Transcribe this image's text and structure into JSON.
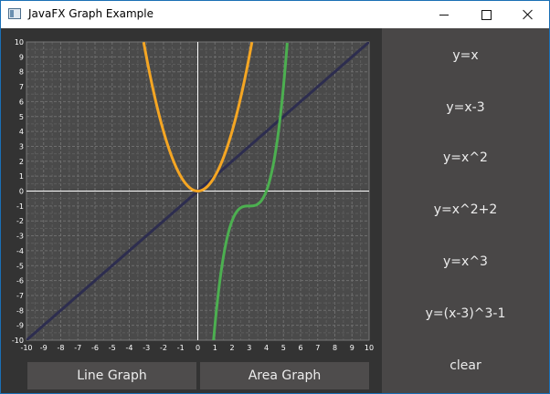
{
  "window": {
    "title": "JavaFX Graph Example"
  },
  "icons": {
    "app": "app-window-icon",
    "minimize": "minimize-icon",
    "maximize": "maximize-icon",
    "close": "close-icon"
  },
  "buttons": {
    "line_graph": "Line Graph",
    "area_graph": "Area Graph"
  },
  "functions": [
    "y=x",
    "y=x-3",
    "y=x^2",
    "y=x^2+2",
    "y=x^3",
    "y=(x-3)^3-1",
    "clear"
  ],
  "colors": {
    "line_yx": "#2d2d4f",
    "parabola": "#f5a623",
    "cubic": "#4caf50",
    "plot_bg": "#4a4a4a",
    "axis": "#ffffff"
  },
  "chart_data": {
    "type": "line",
    "xlim": [
      -10,
      10
    ],
    "ylim": [
      -10,
      10
    ],
    "grid": true,
    "x_ticks": [
      "-10",
      "-9",
      "-8",
      "-7",
      "-6",
      "-5",
      "-4",
      "-3",
      "-2",
      "-1",
      "0",
      "1",
      "2",
      "3",
      "4",
      "5",
      "6",
      "7",
      "8",
      "9",
      "10"
    ],
    "y_ticks": [
      "10",
      "9",
      "8",
      "7",
      "6",
      "5",
      "4",
      "3",
      "2",
      "1",
      "0",
      "-1",
      "-2",
      "-3",
      "-4",
      "-5",
      "-6",
      "-7",
      "-8",
      "-9",
      "-10"
    ],
    "series": [
      {
        "expr": "x",
        "color": "#2d2d4f",
        "x": [
          -10,
          10
        ],
        "y": [
          -10,
          10
        ]
      },
      {
        "expr": "x^2",
        "color": "#f5a623",
        "x": [
          -3.16,
          -2,
          -1,
          0,
          1,
          2,
          3.16
        ],
        "y": [
          10,
          4,
          1,
          0,
          1,
          4,
          10
        ]
      },
      {
        "expr": "(x-3)^3-1",
        "color": "#4caf50",
        "x": [
          0.92,
          1,
          2,
          3,
          4,
          5,
          5.22
        ],
        "y": [
          -10,
          -9,
          -2,
          -1,
          0,
          7,
          10
        ]
      }
    ]
  }
}
